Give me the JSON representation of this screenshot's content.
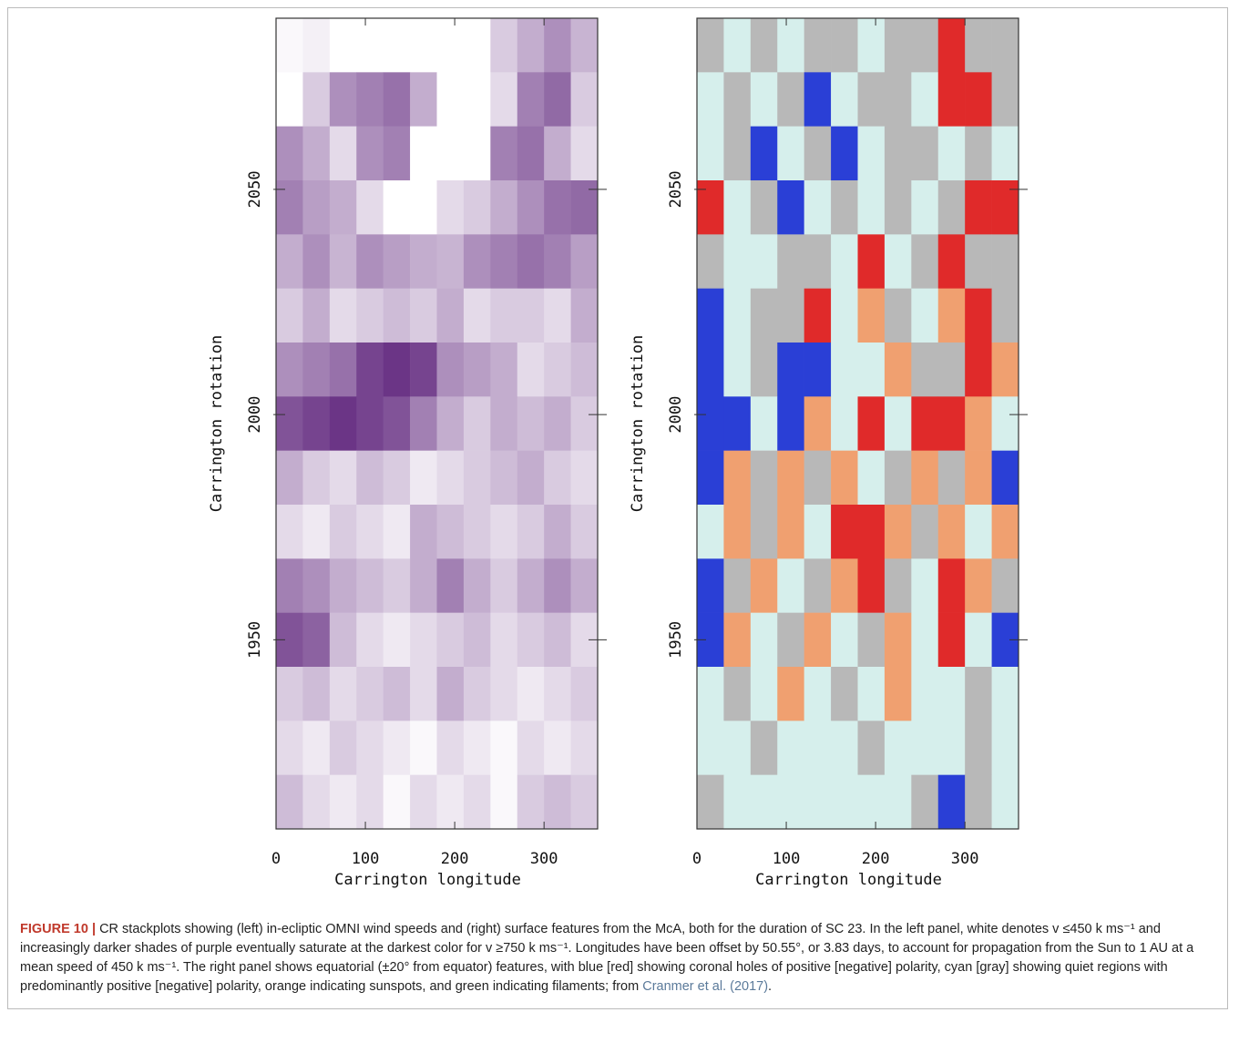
{
  "chart_data": [
    {
      "type": "heatmap",
      "xlabel": "Carrington longitude",
      "ylabel": "Carrington rotation",
      "xlim": [
        0,
        360
      ],
      "ylim": [
        1908,
        2088
      ],
      "xticks": [
        0,
        100,
        200,
        300
      ],
      "yticks": [
        1950,
        2000,
        2050
      ],
      "x": [
        15,
        45,
        75,
        105,
        135,
        165,
        195,
        225,
        255,
        285,
        315,
        345
      ],
      "y": [
        2082,
        2070,
        2058,
        2046,
        2034,
        2022,
        2010,
        1998,
        1986,
        1974,
        1962,
        1950,
        1938,
        1926,
        1914
      ],
      "vlim": [
        450,
        750
      ],
      "colormap": [
        "#ffffff",
        "#5a1f78"
      ],
      "values": [
        [
          460,
          470,
          450,
          450,
          450,
          450,
          450,
          450,
          520,
          560,
          600,
          550
        ],
        [
          450,
          520,
          600,
          620,
          640,
          560,
          450,
          450,
          500,
          620,
          650,
          520
        ],
        [
          600,
          560,
          500,
          600,
          620,
          450,
          450,
          450,
          620,
          640,
          560,
          500
        ],
        [
          620,
          580,
          560,
          500,
          450,
          450,
          500,
          520,
          560,
          600,
          640,
          650
        ],
        [
          560,
          600,
          550,
          600,
          580,
          560,
          550,
          600,
          620,
          640,
          620,
          580
        ],
        [
          520,
          560,
          500,
          520,
          540,
          520,
          560,
          500,
          520,
          520,
          500,
          560
        ],
        [
          600,
          620,
          640,
          700,
          720,
          700,
          600,
          580,
          560,
          500,
          520,
          540
        ],
        [
          680,
          700,
          720,
          700,
          680,
          620,
          560,
          520,
          560,
          540,
          560,
          520
        ],
        [
          560,
          520,
          500,
          540,
          520,
          480,
          500,
          520,
          540,
          560,
          520,
          500
        ],
        [
          500,
          480,
          520,
          500,
          480,
          560,
          540,
          520,
          500,
          520,
          560,
          520
        ],
        [
          620,
          600,
          560,
          540,
          520,
          560,
          620,
          560,
          520,
          560,
          600,
          560
        ],
        [
          680,
          660,
          540,
          500,
          480,
          500,
          520,
          540,
          500,
          520,
          540,
          500
        ],
        [
          520,
          540,
          500,
          520,
          540,
          500,
          560,
          520,
          500,
          480,
          500,
          520
        ],
        [
          500,
          480,
          520,
          500,
          480,
          460,
          500,
          480,
          460,
          500,
          480,
          500
        ],
        [
          540,
          500,
          480,
          500,
          460,
          500,
          480,
          500,
          460,
          520,
          540,
          520
        ]
      ]
    },
    {
      "type": "category-map",
      "xlabel": "Carrington longitude",
      "ylabel": "Carrington rotation",
      "xlim": [
        0,
        360
      ],
      "ylim": [
        1908,
        2088
      ],
      "xticks": [
        0,
        100,
        200,
        300
      ],
      "yticks": [
        1950,
        2000,
        2050
      ],
      "x": [
        15,
        45,
        75,
        105,
        135,
        165,
        195,
        225,
        255,
        285,
        315,
        345
      ],
      "y": [
        2082,
        2070,
        2058,
        2046,
        2034,
        2022,
        2010,
        1998,
        1986,
        1974,
        1962,
        1950,
        1938,
        1926,
        1914
      ],
      "colors": [
        [
          "#b8b8b8",
          "#d6efec",
          "#b8b8b8",
          "#d6efec",
          "#b8b8b8",
          "#b8b8b8",
          "#d6efec",
          "#b8b8b8",
          "#b8b8b8",
          "#e02a2a",
          "#b8b8b8",
          "#b8b8b8"
        ],
        [
          "#d6efec",
          "#b8b8b8",
          "#d6efec",
          "#b8b8b8",
          "#2a3fd6",
          "#d6efec",
          "#b8b8b8",
          "#b8b8b8",
          "#d6efec",
          "#e02a2a",
          "#e02a2a",
          "#b8b8b8"
        ],
        [
          "#d6efec",
          "#b8b8b8",
          "#2a3fd6",
          "#d6efec",
          "#b8b8b8",
          "#2a3fd6",
          "#d6efec",
          "#b8b8b8",
          "#b8b8b8",
          "#d6efec",
          "#b8b8b8",
          "#d6efec"
        ],
        [
          "#e02a2a",
          "#d6efec",
          "#b8b8b8",
          "#2a3fd6",
          "#d6efec",
          "#b8b8b8",
          "#d6efec",
          "#b8b8b8",
          "#d6efec",
          "#b8b8b8",
          "#e02a2a",
          "#e02a2a"
        ],
        [
          "#b8b8b8",
          "#d6efec",
          "#d6efec",
          "#b8b8b8",
          "#b8b8b8",
          "#d6efec",
          "#e02a2a",
          "#d6efec",
          "#b8b8b8",
          "#e02a2a",
          "#b8b8b8",
          "#b8b8b8"
        ],
        [
          "#2a3fd6",
          "#d6efec",
          "#b8b8b8",
          "#b8b8b8",
          "#e02a2a",
          "#d6efec",
          "#f0a070",
          "#b8b8b8",
          "#d6efec",
          "#f0a070",
          "#e02a2a",
          "#b8b8b8"
        ],
        [
          "#2a3fd6",
          "#d6efec",
          "#b8b8b8",
          "#2a3fd6",
          "#2a3fd6",
          "#d6efec",
          "#d6efec",
          "#f0a070",
          "#b8b8b8",
          "#b8b8b8",
          "#e02a2a",
          "#f0a070"
        ],
        [
          "#2a3fd6",
          "#2a3fd6",
          "#d6efec",
          "#2a3fd6",
          "#f0a070",
          "#d6efec",
          "#e02a2a",
          "#d6efec",
          "#e02a2a",
          "#e02a2a",
          "#f0a070",
          "#d6efec"
        ],
        [
          "#2a3fd6",
          "#f0a070",
          "#b8b8b8",
          "#f0a070",
          "#b8b8b8",
          "#f0a070",
          "#d6efec",
          "#b8b8b8",
          "#f0a070",
          "#b8b8b8",
          "#f0a070",
          "#2a3fd6"
        ],
        [
          "#d6efec",
          "#f0a070",
          "#b8b8b8",
          "#f0a070",
          "#d6efec",
          "#e02a2a",
          "#e02a2a",
          "#f0a070",
          "#b8b8b8",
          "#f0a070",
          "#d6efec",
          "#f0a070"
        ],
        [
          "#2a3fd6",
          "#b8b8b8",
          "#f0a070",
          "#d6efec",
          "#b8b8b8",
          "#f0a070",
          "#e02a2a",
          "#b8b8b8",
          "#d6efec",
          "#e02a2a",
          "#f0a070",
          "#b8b8b8"
        ],
        [
          "#2a3fd6",
          "#f0a070",
          "#d6efec",
          "#b8b8b8",
          "#f0a070",
          "#d6efec",
          "#b8b8b8",
          "#f0a070",
          "#d6efec",
          "#e02a2a",
          "#d6efec",
          "#2a3fd6"
        ],
        [
          "#d6efec",
          "#b8b8b8",
          "#d6efec",
          "#f0a070",
          "#d6efec",
          "#b8b8b8",
          "#d6efec",
          "#f0a070",
          "#d6efec",
          "#d6efec",
          "#b8b8b8",
          "#d6efec"
        ],
        [
          "#d6efec",
          "#d6efec",
          "#b8b8b8",
          "#d6efec",
          "#d6efec",
          "#d6efec",
          "#b8b8b8",
          "#d6efec",
          "#d6efec",
          "#d6efec",
          "#b8b8b8",
          "#d6efec"
        ],
        [
          "#b8b8b8",
          "#d6efec",
          "#d6efec",
          "#d6efec",
          "#d6efec",
          "#d6efec",
          "#d6efec",
          "#d6efec",
          "#b8b8b8",
          "#2a3fd6",
          "#b8b8b8",
          "#d6efec"
        ]
      ]
    }
  ],
  "caption": {
    "label": "FIGURE 10 |",
    "text": "CR stackplots showing (left) in-ecliptic OMNI wind speeds and (right) surface features from the McA, both for the duration of SC 23. In the left panel, white denotes v ≤450 k ms⁻¹ and increasingly darker shades of purple eventually saturate at the darkest color for v ≥750 k ms⁻¹. Longitudes have been offset by 50.55°, or 3.83 days, to account for propagation from the Sun to 1 AU at a mean speed of 450 k ms⁻¹. The right panel shows equatorial (±20° from equator) features, with blue [red] showing coronal holes of positive [negative] polarity, cyan [gray] showing quiet regions with predominantly positive [negative] polarity, orange indicating sunspots, and green indicating filaments; from",
    "citation": "Cranmer et al. (2017)",
    "end": "."
  }
}
